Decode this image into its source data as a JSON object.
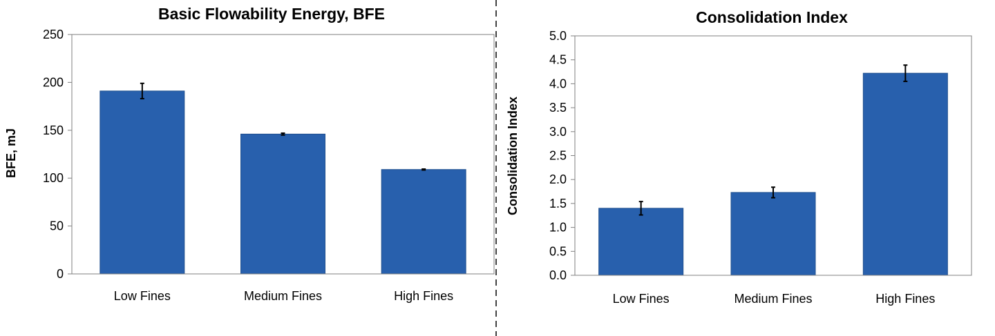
{
  "chart_data": [
    {
      "type": "bar",
      "title": "Basic Flowability Energy, BFE",
      "xlabel": "",
      "ylabel": "BFE, mJ",
      "ylim": [
        0,
        250
      ],
      "yticks": [
        0,
        50,
        100,
        150,
        200,
        250
      ],
      "ytick_labels": [
        "0",
        "50",
        "100",
        "150",
        "200",
        "250"
      ],
      "categories": [
        "Low Fines",
        "Medium Fines",
        "High Fines"
      ],
      "values": [
        191,
        146,
        109
      ],
      "errors": [
        8,
        1,
        0.5
      ],
      "grid": false,
      "color": "#2860ad"
    },
    {
      "type": "bar",
      "title": "Consolidation Index",
      "xlabel": "",
      "ylabel": "Consolidation Index",
      "ylim": [
        0,
        5
      ],
      "yticks": [
        0,
        0.5,
        1,
        1.5,
        2,
        2.5,
        3,
        3.5,
        4,
        4.5,
        5
      ],
      "ytick_labels": [
        "0.0",
        "0.5",
        "1.0",
        "1.5",
        "2.0",
        "2.5",
        "3.0",
        "3.5",
        "4.0",
        "4.5",
        "5.0"
      ],
      "categories": [
        "Low Fines",
        "Medium Fines",
        "High Fines"
      ],
      "values": [
        1.4,
        1.73,
        4.22
      ],
      "errors": [
        0.14,
        0.11,
        0.17
      ],
      "grid": false,
      "color": "#2860ad"
    }
  ]
}
